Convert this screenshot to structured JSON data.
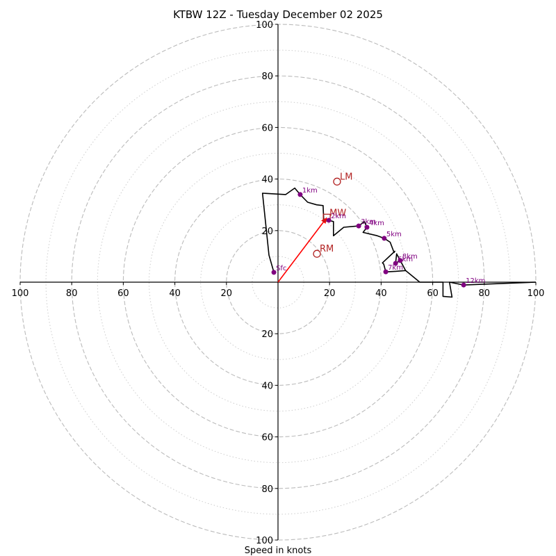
{
  "chart_data": {
    "type": "line",
    "subtype": "hodograph",
    "title": "KTBW 12Z - Tuesday December 02 2025",
    "xlabel": "Speed in knots",
    "ylabel": "",
    "range": [
      -100,
      100
    ],
    "rings_dashed": [
      20,
      40,
      60,
      80,
      100
    ],
    "rings_dotted": [
      10,
      30,
      50,
      70,
      90
    ],
    "tick_labels": [
      "100",
      "80",
      "60",
      "40",
      "20",
      "20",
      "40",
      "60",
      "80",
      "100"
    ],
    "x_ticks": [
      -100,
      -80,
      -60,
      -40,
      -20,
      20,
      40,
      60,
      80,
      100
    ],
    "y_ticks": [
      100,
      80,
      60,
      40,
      20,
      -20,
      -40,
      -60,
      -80,
      -100
    ],
    "y_tick_labels": [
      "100",
      "80",
      "60",
      "40",
      "20",
      "20",
      "40",
      "60",
      "80",
      "100"
    ],
    "hodograph_path": [
      [
        -1.6,
        3.8
      ],
      [
        -3.5,
        10.5
      ],
      [
        -6,
        34.5
      ],
      [
        3,
        34
      ],
      [
        6.5,
        36.5
      ],
      [
        8.6,
        34
      ],
      [
        11.5,
        31
      ],
      [
        15,
        30
      ],
      [
        17.5,
        29.7
      ],
      [
        17.7,
        24.5
      ],
      [
        19.7,
        24
      ],
      [
        21.5,
        23.5
      ],
      [
        21.5,
        18
      ],
      [
        25.5,
        21.3
      ],
      [
        31.3,
        21.8
      ],
      [
        33.5,
        23.5
      ],
      [
        34.5,
        21.3
      ],
      [
        33,
        19.3
      ],
      [
        38.5,
        18
      ],
      [
        41.2,
        17
      ],
      [
        43.5,
        15.5
      ],
      [
        45,
        11.5
      ],
      [
        45.3,
        12
      ],
      [
        40.5,
        7.5
      ],
      [
        41,
        7
      ],
      [
        41.8,
        4
      ],
      [
        45.6,
        4.2
      ],
      [
        49.5,
        4.5
      ],
      [
        47.4,
        8.4
      ],
      [
        45.6,
        7.3
      ],
      [
        46,
        11
      ],
      [
        49.5,
        4.5
      ],
      [
        55,
        0
      ],
      [
        64,
        0
      ],
      [
        64,
        -5.5
      ],
      [
        67.5,
        -5.8
      ],
      [
        66.5,
        0
      ],
      [
        72,
        -1.1
      ],
      [
        100,
        0
      ]
    ],
    "height_markers": [
      {
        "label": "Sfc",
        "u": -1.6,
        "v": 3.8
      },
      {
        "label": "1km",
        "u": 8.6,
        "v": 34.0
      },
      {
        "label": "2km",
        "u": 19.7,
        "v": 24.0
      },
      {
        "label": "3km",
        "u": 31.3,
        "v": 21.8
      },
      {
        "label": "4km",
        "u": 34.5,
        "v": 21.3
      },
      {
        "label": "5km",
        "u": 41.2,
        "v": 17.0
      },
      {
        "label": "6km",
        "u": 45.6,
        "v": 7.3
      },
      {
        "label": "7km",
        "u": 41.8,
        "v": 4.0
      },
      {
        "label": "8km",
        "u": 47.4,
        "v": 8.4
      },
      {
        "label": "12km",
        "u": 72.0,
        "v": -1.1
      }
    ],
    "storm_motion": {
      "LM": {
        "label": "LM",
        "u": 22.9,
        "v": 39.0
      },
      "RM": {
        "label": "RM",
        "u": 15.1,
        "v": 11.0
      },
      "MW": {
        "label": "MW",
        "u": 18.9,
        "v": 25.0
      }
    },
    "shear_vector": {
      "from": [
        0,
        0
      ],
      "to": [
        18.9,
        25.0
      ],
      "color": "#ff0000"
    },
    "colors": {
      "path": "#000000",
      "marker": "#800080",
      "storm": "#b22222",
      "ring": "#bbbbbb"
    }
  }
}
